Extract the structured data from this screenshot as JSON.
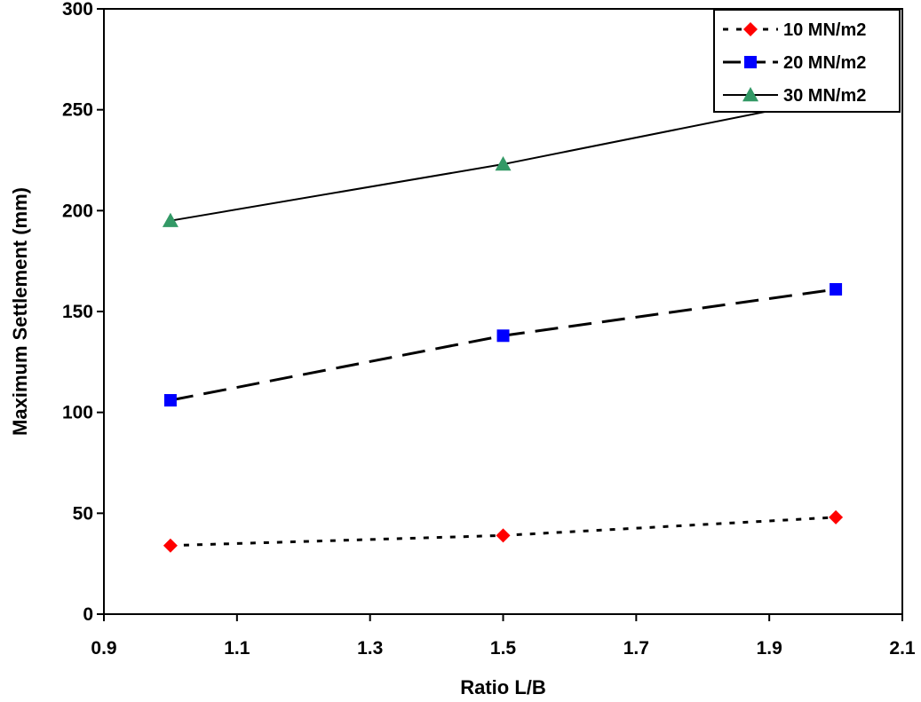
{
  "chart_data": {
    "type": "line",
    "title": "",
    "xlabel": "Ratio L/B",
    "ylabel": "Maximum Settlement (mm)",
    "xlim": [
      0.9,
      2.1
    ],
    "ylim": [
      0,
      300
    ],
    "xticks": [
      0.9,
      1.1,
      1.3,
      1.5,
      1.7,
      1.9,
      2.1
    ],
    "xtick_labels": [
      "0.9",
      "1.1",
      "1.3",
      "1.5",
      "1.7",
      "1.9",
      "2.1"
    ],
    "yticks": [
      0,
      50,
      100,
      150,
      200,
      250,
      300
    ],
    "ytick_labels": [
      "0",
      "50",
      "100",
      "150",
      "200",
      "250",
      "300"
    ],
    "grid": false,
    "legend_position": "top-right",
    "series": [
      {
        "name": "10 MN/m2",
        "x": [
          1.0,
          1.5,
          2.0
        ],
        "y": [
          34,
          39,
          48
        ],
        "color": "#ff0000",
        "marker": "diamond",
        "line_style": "dotted"
      },
      {
        "name": "20 MN/m2",
        "x": [
          1.0,
          1.5,
          2.0
        ],
        "y": [
          106,
          138,
          161
        ],
        "color": "#0000ff",
        "marker": "square",
        "line_style": "dashed"
      },
      {
        "name": "30 MN/m2",
        "x": [
          1.0,
          1.5,
          2.0
        ],
        "y": [
          195,
          223,
          256
        ],
        "color": "#339966",
        "marker": "triangle",
        "line_style": "solid"
      }
    ]
  }
}
